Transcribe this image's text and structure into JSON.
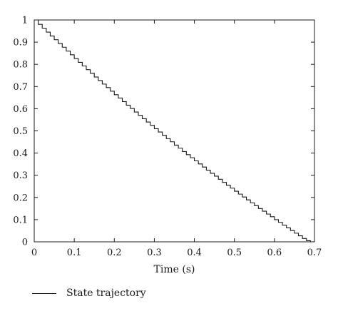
{
  "chart_data": {
    "type": "line",
    "title": "",
    "xlabel": "Time (s)",
    "ylabel": "",
    "xlim": [
      0,
      0.7
    ],
    "ylim": [
      0,
      1
    ],
    "xticks": [
      "0",
      "0.1",
      "0.2",
      "0.3",
      "0.4",
      "0.5",
      "0.6",
      "0.7"
    ],
    "yticks": [
      "0",
      "0.1",
      "0.2",
      "0.3",
      "0.4",
      "0.5",
      "0.6",
      "0.7",
      "0.8",
      "0.9",
      "1"
    ],
    "grid": false,
    "legend_position": "bottom-left",
    "series": [
      {
        "name": "State trajectory",
        "step": "post",
        "color": "#1a1a1a",
        "x": [
          0,
          0.01,
          0.02,
          0.03,
          0.04,
          0.05,
          0.06,
          0.07,
          0.08,
          0.09,
          0.1,
          0.11,
          0.12,
          0.13,
          0.14,
          0.15,
          0.16,
          0.17,
          0.18,
          0.19,
          0.2,
          0.21,
          0.22,
          0.23,
          0.24,
          0.25,
          0.26,
          0.27,
          0.28,
          0.29,
          0.3,
          0.31,
          0.32,
          0.33,
          0.34,
          0.35,
          0.36,
          0.37,
          0.38,
          0.39,
          0.4,
          0.41,
          0.42,
          0.43,
          0.44,
          0.45,
          0.46,
          0.47,
          0.48,
          0.49,
          0.5,
          0.51,
          0.52,
          0.53,
          0.54,
          0.55,
          0.56,
          0.57,
          0.58,
          0.59,
          0.6,
          0.61,
          0.62,
          0.63,
          0.64,
          0.65,
          0.66,
          0.67,
          0.68,
          0.69
        ],
        "y": [
          1.0,
          0.98,
          0.963,
          0.945,
          0.928,
          0.911,
          0.894,
          0.877,
          0.86,
          0.843,
          0.826,
          0.809,
          0.793,
          0.776,
          0.76,
          0.743,
          0.727,
          0.711,
          0.695,
          0.679,
          0.663,
          0.648,
          0.632,
          0.616,
          0.601,
          0.585,
          0.57,
          0.555,
          0.54,
          0.525,
          0.51,
          0.495,
          0.48,
          0.465,
          0.451,
          0.436,
          0.422,
          0.407,
          0.393,
          0.379,
          0.365,
          0.351,
          0.337,
          0.323,
          0.309,
          0.296,
          0.282,
          0.268,
          0.255,
          0.242,
          0.228,
          0.215,
          0.202,
          0.189,
          0.176,
          0.163,
          0.15,
          0.138,
          0.125,
          0.113,
          0.1,
          0.088,
          0.075,
          0.063,
          0.051,
          0.039,
          0.027,
          0.015,
          0.005,
          0.0
        ]
      }
    ]
  }
}
